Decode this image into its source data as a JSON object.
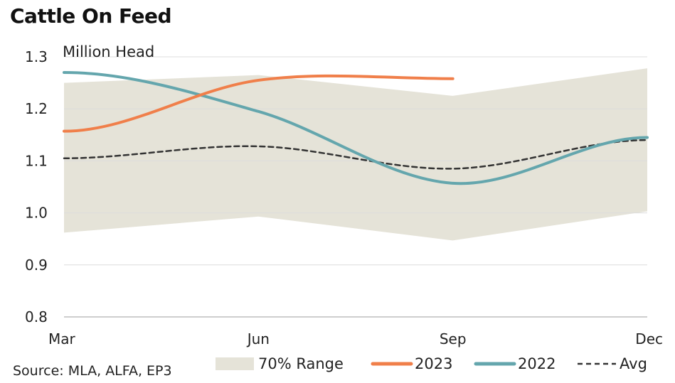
{
  "title": "Cattle On Feed",
  "source": "Source: MLA, ALFA, EP3",
  "colors": {
    "range": "#e5e3d8",
    "s2023": "#f07f4a",
    "s2022": "#64a6ad",
    "avg": "#333333",
    "grid": "#dcdcdc"
  },
  "chart_data": {
    "type": "line",
    "title": "Cattle On Feed",
    "ylabel": "Million Head",
    "xlabel": "",
    "ylim": [
      0.8,
      1.3
    ],
    "yticks": [
      0.8,
      0.9,
      1.0,
      1.1,
      1.2,
      1.3
    ],
    "ytick_labels": [
      "0.8",
      "0.9",
      "1.0",
      "1.1",
      "1.2",
      "1.3"
    ],
    "x_labels": [
      "Mar",
      "Jun",
      "Sep",
      "Dec"
    ],
    "grid": "horizontal",
    "legend_position": "bottom",
    "range_band": {
      "name": "70% Range",
      "upper": [
        1.25,
        1.265,
        1.225,
        1.278
      ],
      "lower": [
        0.962,
        0.993,
        0.947,
        1.003
      ]
    },
    "series": [
      {
        "name": "2023",
        "style": "solid",
        "values": [
          1.157,
          1.255,
          1.258
        ]
      },
      {
        "name": "2022",
        "style": "solid",
        "values": [
          1.27,
          1.195,
          1.057,
          1.145
        ]
      },
      {
        "name": "Avg",
        "style": "dashed",
        "values": [
          1.105,
          1.128,
          1.085,
          1.14
        ]
      }
    ]
  }
}
